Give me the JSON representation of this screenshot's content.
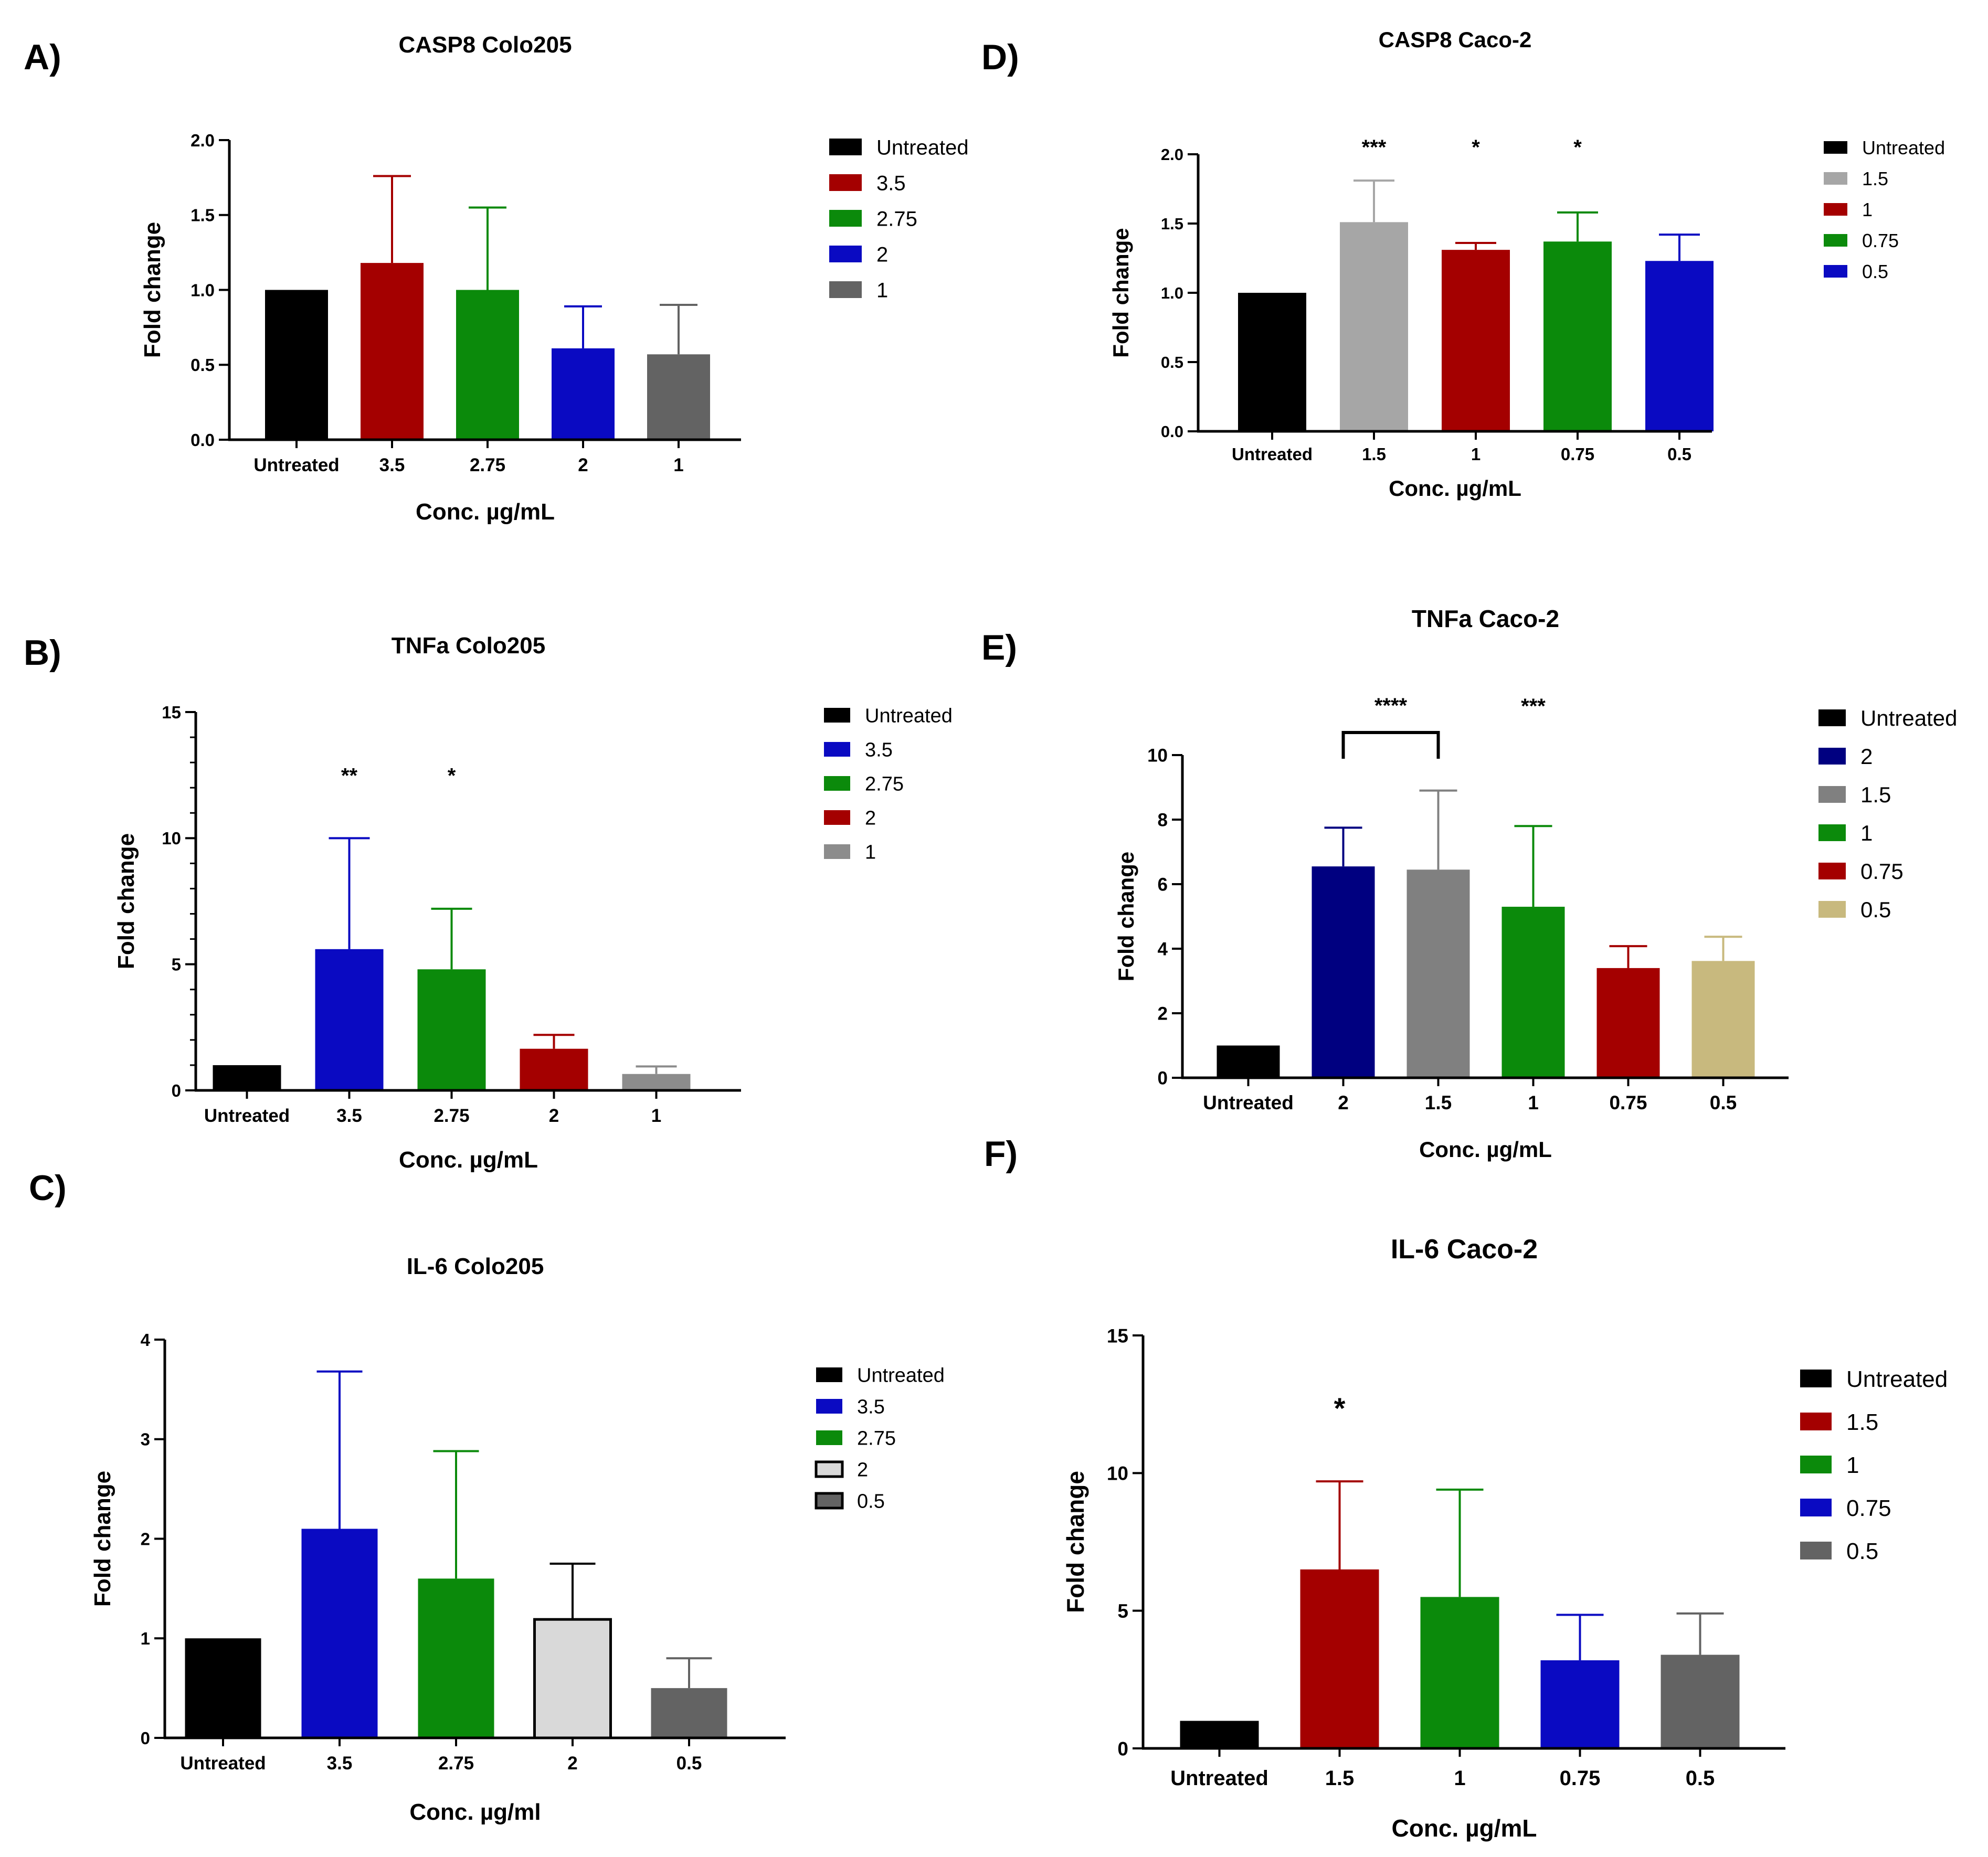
{
  "panels": [
    {
      "letter": "A)",
      "chart": {
        "type": "bar",
        "title": "CASP8 Colo205",
        "xlabel": "Conc. µg/mL",
        "ylabel": "Fold change",
        "categories": [
          "Untreated",
          "3.5",
          "2.75",
          "2",
          "1"
        ],
        "values": [
          1.0,
          1.18,
          1.0,
          0.61,
          0.57
        ],
        "errors": [
          0,
          0.58,
          0.55,
          0.28,
          0.33
        ],
        "colors": [
          "#000000",
          "#a40000",
          "#0b8a0b",
          "#0a0ac2",
          "#636363"
        ],
        "ylim": [
          0,
          2
        ],
        "yticks": [
          "0.0",
          "0.5",
          "1.0",
          "1.5",
          "2.0"
        ],
        "ytick_values": [
          0,
          0.5,
          1,
          1.5,
          2
        ],
        "minor_ticks": 0,
        "significance": [],
        "bracket": null,
        "legend": [
          "Untreated",
          "3.5",
          "2.75",
          "2",
          "1"
        ],
        "legend_position": "right"
      }
    },
    {
      "letter": "B)",
      "chart": {
        "type": "bar",
        "title": "TNFa Colo205",
        "xlabel": "Conc. µg/mL",
        "ylabel": "Fold change",
        "categories": [
          "Untreated",
          "3.5",
          "2.75",
          "2",
          "1"
        ],
        "values": [
          1.0,
          5.6,
          4.8,
          1.65,
          0.65
        ],
        "errors": [
          0,
          4.4,
          2.4,
          0.55,
          0.3
        ],
        "colors": [
          "#000000",
          "#0a0ac2",
          "#0b8a0b",
          "#a40000",
          "#8c8c8c"
        ],
        "ylim": [
          0,
          15
        ],
        "yticks": [
          "0",
          "5",
          "10",
          "15"
        ],
        "ytick_values": [
          0,
          5,
          10,
          15
        ],
        "minor_ticks": 4,
        "significance": [
          "",
          "**",
          "*",
          "",
          ""
        ],
        "bracket": null,
        "legend": [
          "Untreated",
          "3.5",
          "2.75",
          "2",
          "1"
        ],
        "legend_position": "right"
      }
    },
    {
      "letter": "C)",
      "chart": {
        "type": "bar",
        "title": "IL-6 Colo205",
        "xlabel": "Conc. µg/ml",
        "ylabel": "Fold change",
        "categories": [
          "Untreated",
          "3.5",
          "2.75",
          "2",
          "0.5"
        ],
        "values": [
          1.0,
          2.1,
          1.6,
          1.19,
          0.5
        ],
        "errors": [
          0,
          1.58,
          1.28,
          0.56,
          0.3
        ],
        "colors": [
          "#000000",
          "#0a0ac2",
          "#0b8a0b",
          "#d9d9d9",
          "#636363"
        ],
        "ylim": [
          0,
          4
        ],
        "yticks": [
          "0",
          "1",
          "2",
          "3",
          "4"
        ],
        "ytick_values": [
          0,
          1,
          2,
          3,
          4
        ],
        "minor_ticks": 0,
        "significance": [],
        "bracket": null,
        "legend": [
          "Untreated",
          "3.5",
          "2.75",
          "2",
          "0.5"
        ],
        "legend_position": "right"
      }
    },
    {
      "letter": "D)",
      "chart": {
        "type": "bar",
        "title": "CASP8  Caco-2",
        "xlabel": "Conc. µg/mL",
        "ylabel": "Fold change",
        "categories": [
          "Untreated",
          "1.5",
          "1",
          "0.75",
          "0.5"
        ],
        "values": [
          1.0,
          1.51,
          1.31,
          1.37,
          1.23
        ],
        "errors": [
          0,
          0.3,
          0.05,
          0.21,
          0.19
        ],
        "colors": [
          "#000000",
          "#a6a6a6",
          "#a40000",
          "#0b8a0b",
          "#0a0ac2"
        ],
        "ylim": [
          0,
          2
        ],
        "yticks": [
          "0.0",
          "0.5",
          "1.0",
          "1.5",
          "2.0"
        ],
        "ytick_values": [
          0,
          0.5,
          1,
          1.5,
          2
        ],
        "minor_ticks": 0,
        "significance": [
          "",
          "***",
          "*",
          "*",
          ""
        ],
        "bracket": null,
        "legend": [
          "Untreated",
          "1.5",
          "1",
          "0.75",
          "0.5"
        ],
        "legend_position": "right"
      }
    },
    {
      "letter": "E)",
      "chart": {
        "type": "bar",
        "title": "TNFa Caco-2",
        "xlabel": "Conc. µg/mL",
        "ylabel": "Fold change",
        "categories": [
          "Untreated",
          "2",
          "1.5",
          "1",
          "0.75",
          "0.5"
        ],
        "values": [
          1.0,
          6.55,
          6.45,
          5.3,
          3.4,
          3.62
        ],
        "errors": [
          0,
          1.2,
          2.45,
          2.5,
          0.68,
          0.75
        ],
        "colors": [
          "#000000",
          "#000080",
          "#808080",
          "#0b8a0b",
          "#a40000",
          "#c8b97e"
        ],
        "ylim": [
          0,
          10
        ],
        "yticks": [
          "0",
          "2",
          "4",
          "6",
          "8",
          "10"
        ],
        "ytick_values": [
          0,
          2,
          4,
          6,
          8,
          10
        ],
        "minor_ticks": 0,
        "significance": [
          "",
          "",
          "",
          "***",
          "",
          ""
        ],
        "bracket": {
          "from": 1,
          "to": 2,
          "label": "****"
        },
        "legend": [
          "Untreated",
          "2",
          "1.5",
          "1",
          "0.75",
          "0.5"
        ],
        "legend_position": "right"
      }
    },
    {
      "letter": "F)",
      "chart": {
        "type": "bar",
        "title": "IL-6 Caco-2",
        "xlabel": "Conc. µg/mL",
        "ylabel": "Fold change",
        "categories": [
          "Untreated",
          "1.5",
          "1",
          "0.75",
          "0.5"
        ],
        "values": [
          1.0,
          6.5,
          5.5,
          3.2,
          3.4
        ],
        "errors": [
          0,
          3.2,
          3.9,
          1.65,
          1.5
        ],
        "colors": [
          "#000000",
          "#a40000",
          "#0b8a0b",
          "#0a0ac2",
          "#636363"
        ],
        "ylim": [
          0,
          15
        ],
        "yticks": [
          "0",
          "5",
          "10",
          "15"
        ],
        "ytick_values": [
          0,
          5,
          10,
          15
        ],
        "minor_ticks": 0,
        "significance": [
          "",
          "*",
          "",
          "",
          ""
        ],
        "bracket": null,
        "legend": [
          "Untreated",
          "1.5",
          "1",
          "0.75",
          "0.5"
        ],
        "legend_position": "right"
      }
    }
  ]
}
